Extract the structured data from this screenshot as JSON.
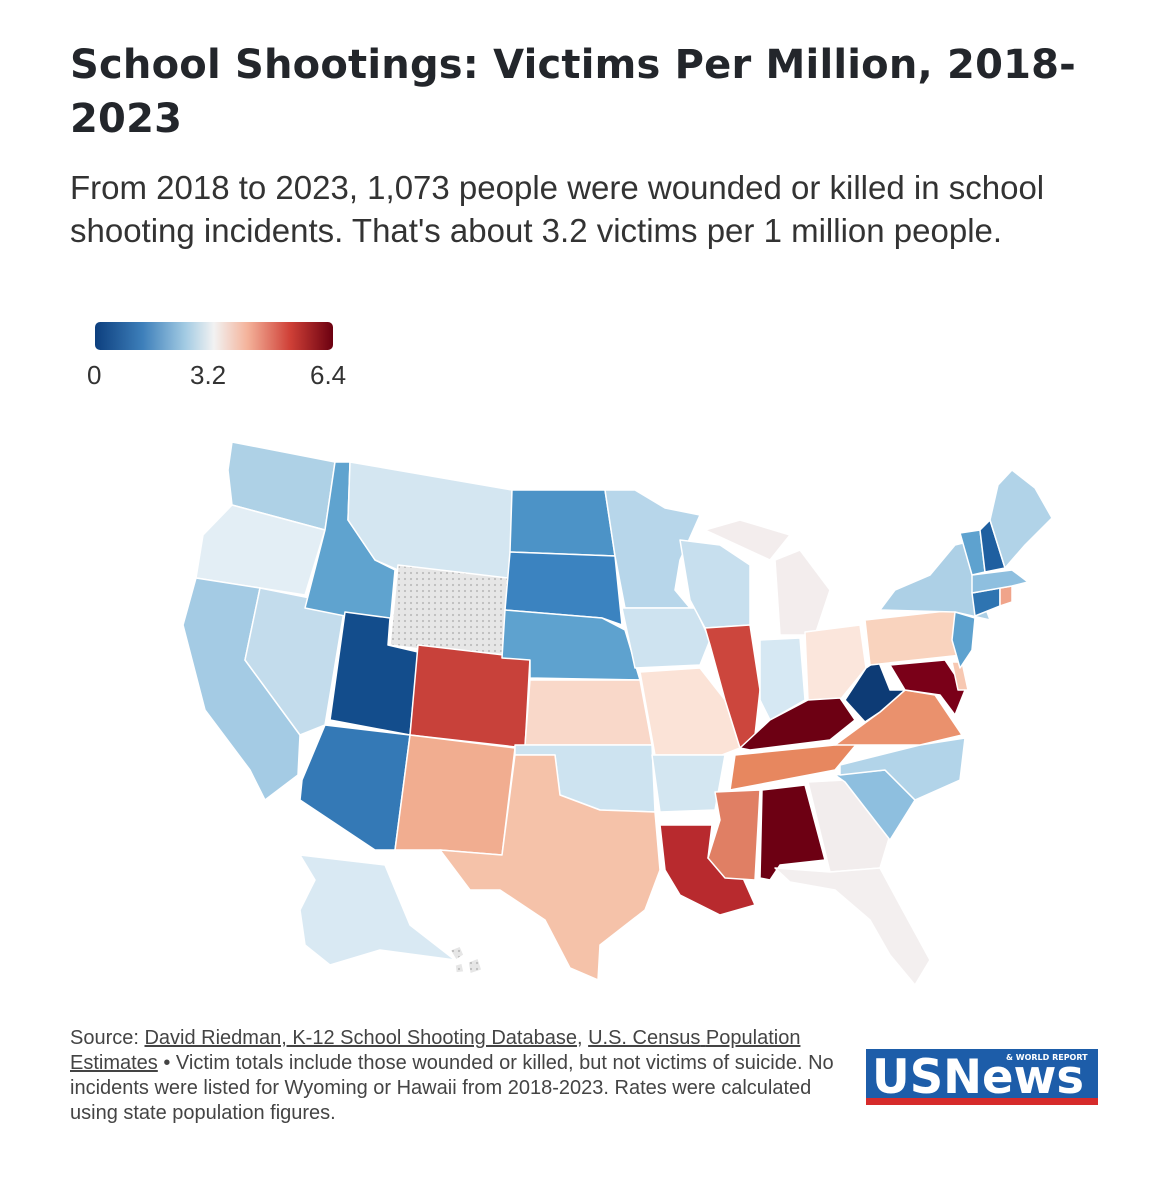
{
  "title": "School Shootings: Victims Per Million, 2018-2023",
  "subtitle": "From 2018 to 2023, 1,073 people were wounded or killed in school shooting incidents. That's about 3.2 victims per 1 million people.",
  "legend": {
    "min_label": "0",
    "mid_label": "3.2",
    "max_label": "6.4",
    "colors": [
      "#0d3f7e",
      "#3d7fba",
      "#a3cbe3",
      "#f2f2f2",
      "#f4b39b",
      "#cf4037",
      "#6b0010"
    ]
  },
  "map": {
    "no_data_color": "#e6e6e6",
    "stroke_color": "#ffffff",
    "state_colors": {
      "WA": "#aed1e6",
      "OR": "#e3eef5",
      "CA": "#a4cbe4",
      "NV": "#c3dcec",
      "ID": "#5fa3cf",
      "MT": "#d4e6f1",
      "WY": "#e6e6e6",
      "UT": "#134d8c",
      "AZ": "#3479b6",
      "CO": "#c8413a",
      "NM": "#f1ad90",
      "ND": "#4c93c7",
      "SD": "#3b83c0",
      "NE": "#5ea2cf",
      "KS": "#f9d8c9",
      "OK": "#cde3f0",
      "TX": "#f5c2a9",
      "MN": "#b7d6ea",
      "IA": "#cee3f0",
      "MO": "#fbe3d7",
      "AR": "#d3e6f1",
      "LA": "#b82a2e",
      "WI": "#c7dfee",
      "IL": "#cc463d",
      "MI": "#f3eded",
      "IN": "#d6e8f3",
      "OH": "#fbe6dc",
      "KY": "#6d0013",
      "TN": "#e7875f",
      "MS": "#e07f64",
      "AL": "#6d0013",
      "GA": "#f2eded",
      "FL": "#f3efef",
      "SC": "#8ebfdf",
      "NC": "#b2d4e9",
      "VA": "#ea916d",
      "WV": "#0d3b75",
      "MD": "#7a0018",
      "DE": "#f7c8b2",
      "PA": "#f9d3be",
      "NY": "#add0e6",
      "NJ": "#5ea2cf",
      "CT": "#2e74b1",
      "RI": "#f0a48a",
      "MA": "#8ebfdf",
      "VT": "#5ea2cf",
      "NH": "#1f5fa0",
      "ME": "#b1d3e8",
      "AK": "#d9e9f3",
      "HI": "#e6e6e6"
    }
  },
  "footer": {
    "source_prefix": "Source: ",
    "source_link_1": "David Riedman, K-12 School Shooting Database",
    "source_sep": ", ",
    "source_link_2a": "U.S. Census",
    "source_link_2b": "Population Estimates",
    "note": " • Victim totals include those wounded or killed, but not victims of suicide. No incidents were listed for Wyoming or Hawaii from 2018-2023. Rates were calculated using state population figures."
  },
  "logo": {
    "wordmark": "USNews",
    "tagline": "& WORLD REPORT",
    "bg_color": "#1d5da9",
    "stripe_color": "#d62b2b"
  }
}
